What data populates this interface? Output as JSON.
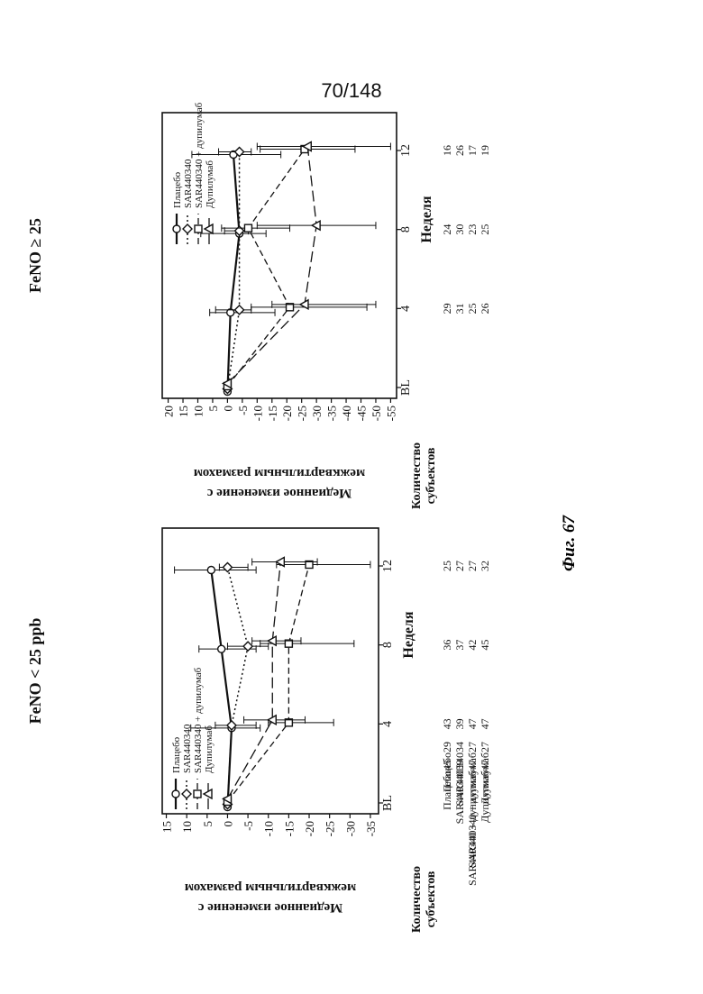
{
  "page_number": "70/148",
  "figure_caption": "Фиг. 67",
  "chart_data": [
    {
      "type": "line",
      "title": "FeNO < 25 ppb",
      "xlabel": "Неделя",
      "ylabel_line1": "Медианное изменение с",
      "ylabel_line2": "межквартильным размахом",
      "x_ticks": [
        "BL",
        "4",
        "8",
        "12"
      ],
      "yticks": [
        15,
        10,
        5,
        0,
        -5,
        -10,
        -15,
        -20,
        -25,
        -30,
        -35
      ],
      "ylim": [
        -37,
        16
      ],
      "legend_position": "bottom-left",
      "series": [
        {
          "name": "Плацебо",
          "marker": "circle",
          "dash": "solid",
          "values": [
            0,
            -1,
            1.5,
            4
          ],
          "ci_low": [
            -1,
            -8,
            -7,
            -7
          ],
          "ci_high": [
            1,
            9,
            7,
            13
          ]
        },
        {
          "name": "SAR440340",
          "marker": "diamond",
          "dash": "dotted",
          "values": [
            0,
            -1,
            -5,
            0
          ],
          "ci_low": [
            -1,
            -7,
            -10,
            -5
          ],
          "ci_high": [
            1,
            3,
            0,
            2
          ]
        },
        {
          "name": "SAR440340 + дупилумаб",
          "marker": "square",
          "dash": "dashed",
          "values": [
            0,
            -15,
            -15,
            -20
          ],
          "ci_low": [
            -1,
            -26,
            -31,
            -35
          ],
          "ci_high": [
            1,
            -10,
            -8,
            -12
          ]
        },
        {
          "name": "Дупилумаб",
          "marker": "triangle",
          "dash": "longdash",
          "values": [
            0,
            -11,
            -11,
            -13
          ],
          "ci_low": [
            -1,
            -19,
            -18,
            -22
          ],
          "ci_high": [
            1,
            -4,
            -6,
            -6
          ]
        }
      ],
      "counts_header_line1": "Количество",
      "counts_header_line2": "субъектов",
      "counts": [
        {
          "label": "Плацебо45",
          "values": [
            "43",
            "36",
            "25"
          ]
        },
        {
          "label": "SAR44034039",
          "values": [
            "39",
            "37",
            "27"
          ]
        },
        {
          "label": "SAR440340 + дупилумаб47",
          "values": [
            "47",
            "42",
            "27"
          ]
        },
        {
          "label": "Дупилумаб47",
          "values": [
            "47",
            "45",
            "32"
          ]
        }
      ]
    },
    {
      "type": "line",
      "title": "FeNO ≥ 25",
      "xlabel": "Неделя",
      "ylabel_line1": "Медианное изменение с",
      "ylabel_line2": "межквартильным размахом",
      "x_ticks": [
        "BL",
        "4",
        "8",
        "12"
      ],
      "yticks": [
        20,
        15,
        10,
        5,
        0,
        -5,
        -10,
        -15,
        -20,
        -25,
        -30,
        -35,
        -40,
        -45,
        -50,
        -55
      ],
      "ylim": [
        -57,
        22
      ],
      "legend_position": "top-right",
      "series": [
        {
          "name": "Плацебо",
          "marker": "circle",
          "dash": "solid",
          "values": [
            0,
            -1,
            -4,
            -2
          ],
          "ci_low": [
            -1,
            -16,
            -13,
            -18
          ],
          "ci_high": [
            1,
            6,
            9,
            12
          ]
        },
        {
          "name": "SAR440340",
          "marker": "diamond",
          "dash": "dotted",
          "values": [
            0,
            -4,
            -4,
            -4
          ],
          "ci_low": [
            -1,
            -8,
            -7,
            -8
          ],
          "ci_high": [
            1,
            4,
            1,
            3
          ]
        },
        {
          "name": "SAR440340 + дупилумаб",
          "marker": "square",
          "dash": "dashed",
          "values": [
            0,
            -21,
            -7,
            -26
          ],
          "ci_low": [
            -1,
            -47,
            -21,
            -43
          ],
          "ci_high": [
            1,
            -8,
            2,
            -11
          ]
        },
        {
          "name": "Дупилумаб",
          "marker": "triangle",
          "dash": "longdash",
          "values": [
            0,
            -26,
            -30,
            -27
          ],
          "ci_low": [
            -1,
            -50,
            -50,
            -55
          ],
          "ci_high": [
            1,
            -15,
            -10,
            -10
          ]
        }
      ],
      "counts_header_line1": "Количество",
      "counts_header_line2": "субъектов",
      "counts": [
        {
          "label": "Плацебо29",
          "values": [
            "29",
            "24",
            "16"
          ]
        },
        {
          "label": "SAR44034034",
          "values": [
            "31",
            "30",
            "26"
          ]
        },
        {
          "label": "SAR440340 + дупилумаб27",
          "values": [
            "25",
            "23",
            "17"
          ]
        },
        {
          "label": "Дупилумаб27",
          "values": [
            "26",
            "25",
            "19"
          ]
        }
      ]
    }
  ]
}
